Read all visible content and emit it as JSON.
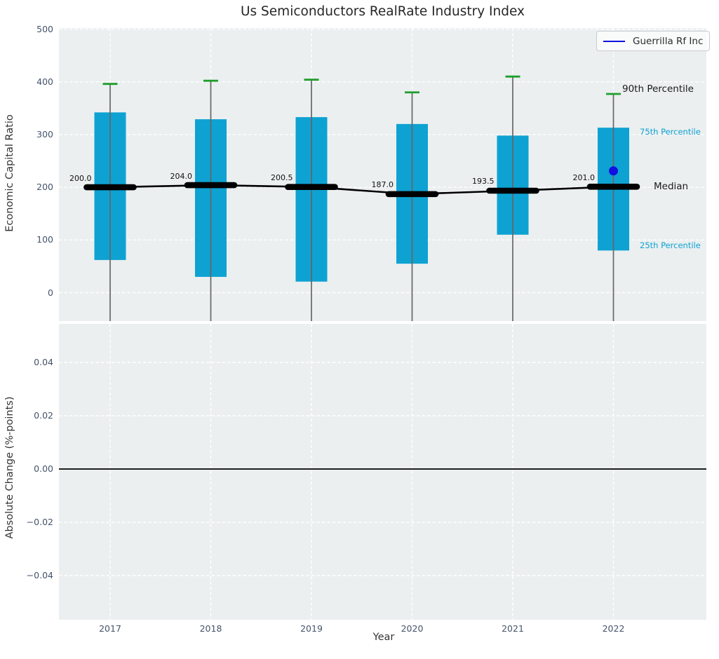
{
  "title": "Us Semiconductors RealRate Industry Index",
  "legend": {
    "label": "Guerrilla Rf Inc"
  },
  "annotations": {
    "p90": "90th Percentile",
    "p75": "75th Percentile",
    "median": "Median",
    "p25": "25th Percentile"
  },
  "top_axis": {
    "ylabel": "Economic Capital Ratio",
    "tick_labels": [
      "500",
      "400",
      "300",
      "200",
      "100",
      "0"
    ],
    "tick_values": [
      500,
      400,
      300,
      200,
      100,
      0
    ]
  },
  "bottom_axis": {
    "ylabel": "Absolute Change (%-points)",
    "xlabel": "Year",
    "tick_labels": [
      "0.04",
      "0.02",
      "0.00",
      "−0.02",
      "−0.04"
    ],
    "tick_values": [
      0.04,
      0.02,
      0,
      -0.02,
      -0.04
    ]
  },
  "colors": {
    "box": "#0ea2d3",
    "cap_green": "#1f9e2c",
    "median_black": "#000000",
    "stem_gray": "#666666",
    "grid_white": "#ffffff",
    "panel_bg": "#ebeff0",
    "tick_text": "#44536b",
    "company_blue": "#0f0fe0",
    "label_cyan": "#0ea2d3"
  },
  "chart_data": [
    {
      "type": "box",
      "panel": "top",
      "title": "Us Semiconductors RealRate Industry Index",
      "ylabel": "Economic Capital Ratio",
      "ylim": [
        -54,
        502
      ],
      "grid": true,
      "legend_position": "upper right",
      "categories": [
        "2017",
        "2018",
        "2019",
        "2020",
        "2021",
        "2022"
      ],
      "p90": [
        396,
        402,
        404,
        380,
        410,
        377
      ],
      "p75": [
        342,
        329,
        333,
        320,
        298,
        313
      ],
      "median": [
        200.0,
        204.0,
        200.5,
        187.0,
        193.5,
        201.0
      ],
      "median_labels": [
        "200.0",
        "204.0",
        "200.5",
        "187.0",
        "193.5",
        "201.0"
      ],
      "p25": [
        62,
        30,
        21,
        55,
        110,
        80
      ],
      "whiskers_clipped_below": true,
      "series": [
        {
          "name": "Guerrilla Rf Inc",
          "marker": "circle",
          "color": "#0f0fe0",
          "points": [
            {
              "x": "2022",
              "y": 231
            }
          ]
        }
      ]
    },
    {
      "type": "line",
      "panel": "bottom",
      "ylabel": "Absolute Change (%-points)",
      "xlabel": "Year",
      "ylim": [
        -0.057,
        0.054
      ],
      "grid": true,
      "categories": [
        "2017",
        "2018",
        "2019",
        "2020",
        "2021",
        "2022"
      ],
      "zero_line": 0.0,
      "series": []
    }
  ]
}
